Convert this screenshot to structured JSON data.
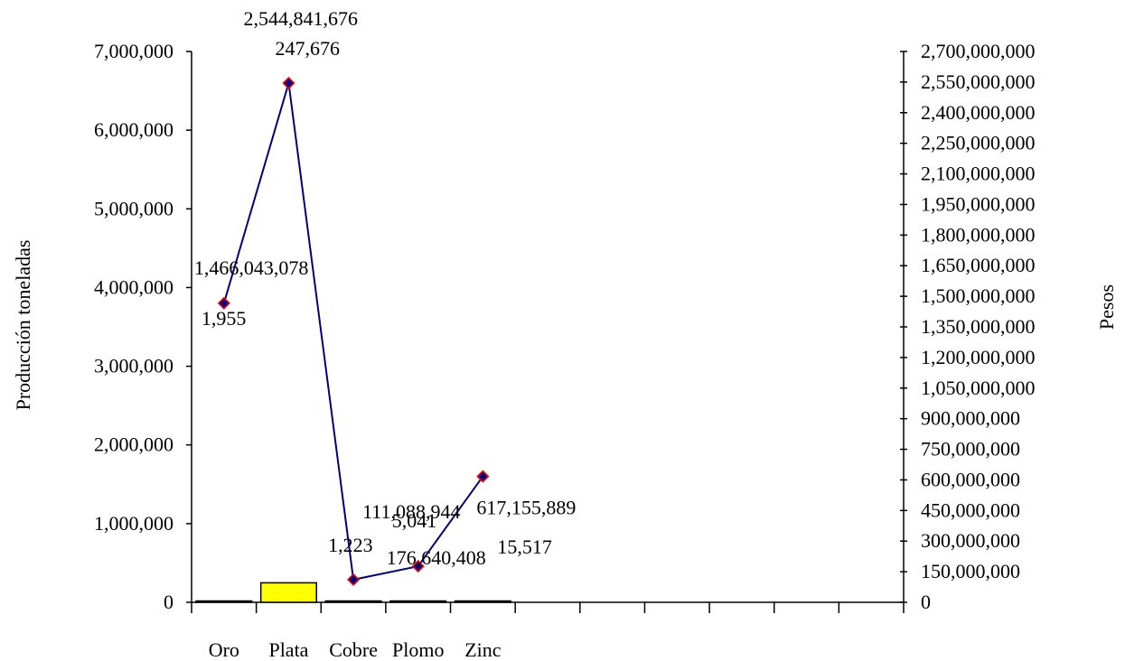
{
  "chart_data": {
    "type": "bar",
    "categories": [
      "Oro",
      "Plata",
      "Cobre",
      "Plomo",
      "Zinc"
    ],
    "ylabel": "Producción toneladas",
    "y2label": "Pesos",
    "ylim": [
      0,
      7000000
    ],
    "y2lim": [
      0,
      2700000000
    ],
    "yticks": [
      "0",
      "1,000,000",
      "2,000,000",
      "3,000,000",
      "4,000,000",
      "5,000,000",
      "6,000,000",
      "7,000,000"
    ],
    "y2ticks": [
      "0",
      "150,000,000",
      "300,000,000",
      "450,000,000",
      "600,000,000",
      "750,000,000",
      "900,000,000",
      "1,050,000,000",
      "1,200,000,000",
      "1,350,000,000",
      "1,500,000,000",
      "1,650,000,000",
      "1,800,000,000",
      "1,950,000,000",
      "2,100,000,000",
      "2,250,000,000",
      "2,400,000,000",
      "2,550,000,000",
      "2,700,000,000"
    ],
    "series": [
      {
        "kind": "bar",
        "axis": "left",
        "color": "#ffff00",
        "values": [
          1955,
          247676,
          1223,
          5041,
          15517
        ],
        "labels": [
          "1,955",
          "247,676",
          "1,223",
          "5,041",
          "15,517"
        ]
      },
      {
        "kind": "line",
        "axis": "right",
        "color": "#000080",
        "marker_fill": "#000080",
        "marker_edge": "#ff0000",
        "values": [
          1466043078,
          2544841676,
          111088944,
          176640408,
          617155889
        ],
        "labels": [
          "1,466,043,078",
          "2,544,841,676",
          "111,088,944",
          "176,640,408",
          "617,155,889"
        ]
      }
    ],
    "grid": false,
    "legend": "none"
  }
}
